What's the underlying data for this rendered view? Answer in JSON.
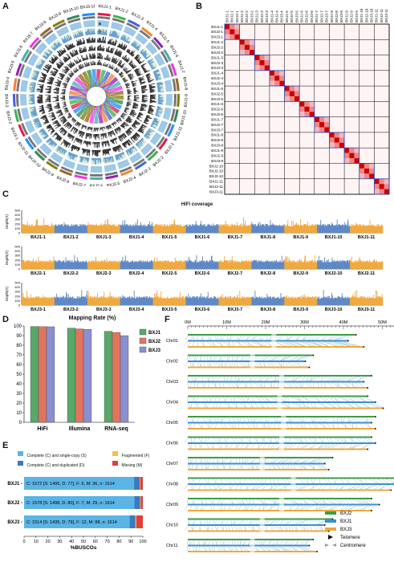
{
  "panels": {
    "a": "A",
    "b": "B",
    "c": "C",
    "d": "D",
    "e": "E",
    "f": "F"
  },
  "circos": {
    "ring_labels": [
      "a",
      "b",
      "c",
      "d",
      "e",
      "f"
    ],
    "chromosomes": [
      "BXJ1-1",
      "BXJ1-2",
      "BXJ1-3",
      "BXJ1-4",
      "BXJ1-5",
      "BXJ1-6",
      "BXJ1-7",
      "BXJ1-8",
      "BXJ1-9",
      "BXJ1-10",
      "BXJ1-11",
      "BXJ2-1",
      "BXJ2-2",
      "BXJ2-3",
      "BXJ2-4",
      "BXJ2-5",
      "BXJ2-6",
      "BXJ2-7",
      "BXJ2-8",
      "BXJ2-9",
      "BXJ2-10",
      "BXJ2-11",
      "BXJ3-1",
      "BXJ3-2",
      "BXJ3-3",
      "BXJ3-4",
      "BXJ3-5",
      "BXJ3-6",
      "BXJ3-7",
      "BXJ3-8",
      "BXJ3-9",
      "BXJ3-10",
      "BXJ3-11"
    ],
    "colors": [
      "#e6194b",
      "#3cb44b",
      "#4363d8",
      "#f58231",
      "#911eb4",
      "#46b0b0",
      "#f032e6",
      "#9a6324",
      "#808000",
      "#2e8b57",
      "#1e90ff"
    ]
  },
  "heatmap": {
    "labels": [
      "BXJ1-1",
      "BXJ2-1",
      "BXJ3-1",
      "BXJ1-2",
      "BXJ2-2",
      "BXJ3-2",
      "BXJ1-3",
      "BXJ2-3",
      "BXJ3-3",
      "BXJ1-4",
      "BXJ2-4",
      "BXJ3-4",
      "BXJ1-5",
      "BXJ2-5",
      "BXJ3-5",
      "BXJ1-6",
      "BXJ2-6",
      "BXJ3-6",
      "BXJ1-7",
      "BXJ2-7",
      "BXJ3-7",
      "BXJ1-8",
      "BXJ2-8",
      "BXJ3-8",
      "BXJ1-9",
      "BXJ2-9",
      "BXJ3-9",
      "BXJ1-10",
      "BXJ2-10",
      "BXJ3-10",
      "BXJ1-11",
      "BXJ2-11",
      "BXJ3-11"
    ]
  },
  "coverage": {
    "title": "HiFi coverage",
    "ylabel": "Depth(X)",
    "yticks": [
      "500",
      "400",
      "300",
      "200",
      "100",
      "0"
    ],
    "rows": [
      [
        "BXJ1-1",
        "BXJ1-2",
        "BXJ1-3",
        "BXJ1-4",
        "BXJ1-5",
        "BXJ1-6",
        "BXJ1-7",
        "BXJ1-8",
        "BXJ1-9",
        "BXJ1-10",
        "BXJ1-11"
      ],
      [
        "BXJ2-1",
        "BXJ2-2",
        "BXJ2-3",
        "BXJ2-4",
        "BXJ2-5",
        "BXJ2-6",
        "BXJ2-7",
        "BXJ2-8",
        "BXJ2-9",
        "BXJ2-10",
        "BXJ2-11"
      ],
      [
        "BXJ3-1",
        "BXJ3-2",
        "BXJ3-3",
        "BXJ3-4",
        "BXJ3-5",
        "BXJ3-6",
        "BXJ3-7",
        "BXJ3-8",
        "BXJ3-9",
        "BXJ3-10",
        "BXJ3-11"
      ]
    ],
    "colors": {
      "orange": "#f0a73c",
      "blue": "#5b86c4"
    }
  },
  "chart_data": [
    {
      "type": "bar",
      "title": "Mapping Rate (%)",
      "categories": [
        "HiFi",
        "Illumina",
        "RNA-seq"
      ],
      "series": [
        {
          "name": "BXJ1",
          "values": [
            99.5,
            97.8,
            94.5
          ],
          "color": "#58a86a"
        },
        {
          "name": "BXJ2",
          "values": [
            99.3,
            97.0,
            93.3
          ],
          "color": "#e0755f"
        },
        {
          "name": "BXJ3",
          "values": [
            99.2,
            96.5,
            90.0
          ],
          "color": "#8a8fd0"
        }
      ],
      "ylim": [
        0,
        100
      ],
      "yticks": [
        "100",
        "90",
        "80",
        "70",
        "60",
        "50",
        "40",
        "30",
        "20",
        "10",
        "0"
      ]
    },
    {
      "type": "bar",
      "xlabel": "%BUSCOs",
      "xticks": [
        "0",
        "10",
        "20",
        "30",
        "40",
        "50",
        "60",
        "70",
        "80",
        "90",
        "100"
      ],
      "categories": [
        "BXJ1",
        "BXJ2",
        "BXJ3"
      ],
      "legend": [
        {
          "name": "Complete (C) and single-copy (S)",
          "color": "#5ab4e5"
        },
        {
          "name": "Fragmented (F)",
          "color": "#f0c24a"
        },
        {
          "name": "Complete (C) and duplicated (D)",
          "color": "#3a7ac0"
        },
        {
          "name": "Missing (M)",
          "color": "#e0403c"
        }
      ],
      "rows": [
        {
          "label": "BXJ1 -",
          "text": "C: 1572 [S: 1495, D: 77], F: 6, M: 36, n: 1614",
          "S": 1495,
          "D": 77,
          "F": 6,
          "M": 36,
          "n": 1614
        },
        {
          "label": "BXJ2 -",
          "text": "C: 1578 [S: 1498, D: 80], F: 7, M: 29, n: 1614",
          "S": 1498,
          "D": 80,
          "F": 7,
          "M": 29,
          "n": 1614
        },
        {
          "label": "BXJ3 -",
          "text": "C: 1514 [S: 1435, D: 79], F: 12, M: 88, n: 1614",
          "S": 1435,
          "D": 79,
          "F": 12,
          "M": 88,
          "n": 1614
        }
      ]
    }
  ],
  "synteny": {
    "axis": [
      "0M",
      "10M",
      "20M",
      "30M",
      "40M",
      "50M"
    ],
    "chromosomes": [
      {
        "name": "Chr01",
        "lens": [
          43,
          41,
          45
        ]
      },
      {
        "name": "Chr02",
        "lens": [
          32,
          30,
          31
        ]
      },
      {
        "name": "Chr03",
        "lens": [
          47,
          45,
          46
        ]
      },
      {
        "name": "Chr04",
        "lens": [
          46,
          48,
          50
        ]
      },
      {
        "name": "Chr05",
        "lens": [
          48,
          47,
          48
        ]
      },
      {
        "name": "Chr06",
        "lens": [
          47,
          48,
          46
        ]
      },
      {
        "name": "Chr07",
        "lens": [
          37,
          35,
          36
        ]
      },
      {
        "name": "Chr08",
        "lens": [
          53,
          54,
          52
        ]
      },
      {
        "name": "Chr09",
        "lens": [
          47,
          49,
          47
        ]
      },
      {
        "name": "Chr10",
        "lens": [
          37,
          35,
          36
        ]
      },
      {
        "name": "Chr11",
        "lens": [
          32,
          31,
          33
        ]
      }
    ],
    "legend": [
      {
        "name": "BXJ2",
        "color": "#3f9c48"
      },
      {
        "name": "BXJ1",
        "color": "#3c8fd0"
      },
      {
        "name": "BXJ3",
        "color": "#f0a73c"
      },
      {
        "name": "Telomere",
        "color": "#111111"
      },
      {
        "name": "Centromere",
        "color": "#999999"
      }
    ]
  }
}
